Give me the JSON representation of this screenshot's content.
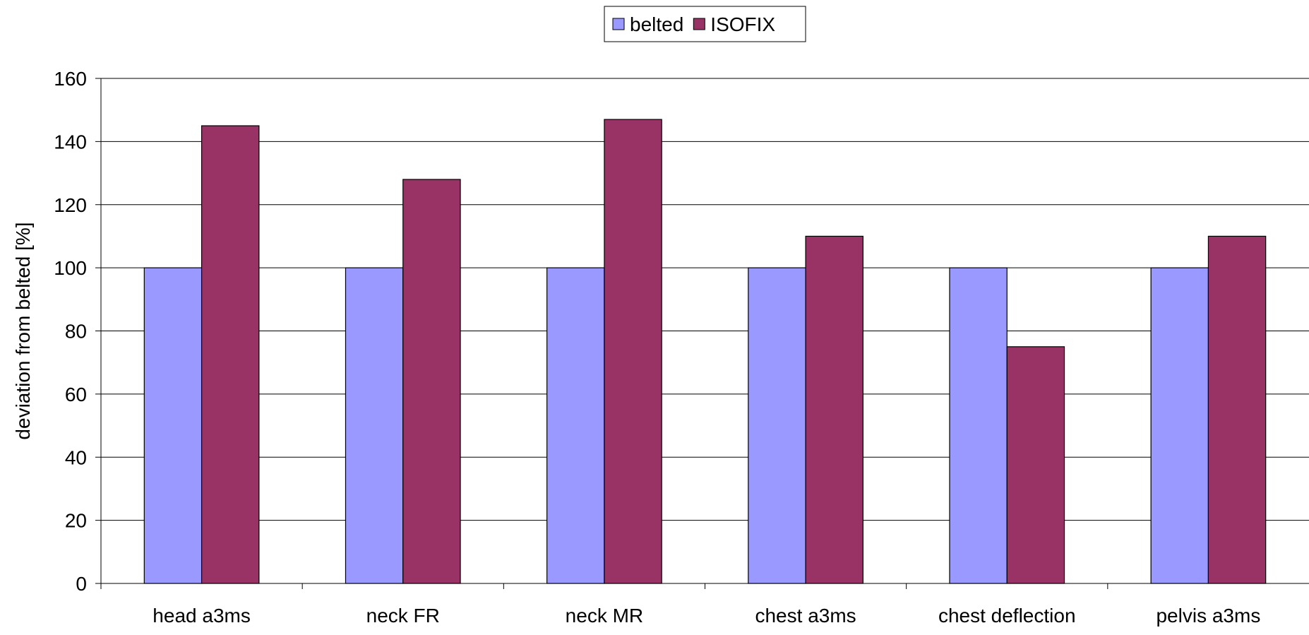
{
  "chart_data": {
    "type": "bar",
    "title": "",
    "xlabel": "",
    "ylabel": "deviation from belted [%]",
    "ylim": [
      0,
      160
    ],
    "yticks": [
      0,
      20,
      40,
      60,
      80,
      100,
      120,
      140,
      160
    ],
    "grid": true,
    "legend_position": "top",
    "categories": [
      "head a3ms",
      "neck FR",
      "neck MR",
      "chest a3ms",
      "chest deflection",
      "pelvis a3ms"
    ],
    "series": [
      {
        "name": "belted",
        "color": "#9999ff",
        "values": [
          100,
          100,
          100,
          100,
          100,
          100
        ]
      },
      {
        "name": "ISOFIX",
        "color": "#993366",
        "values": [
          145,
          128,
          147,
          110,
          75,
          110
        ]
      }
    ]
  }
}
